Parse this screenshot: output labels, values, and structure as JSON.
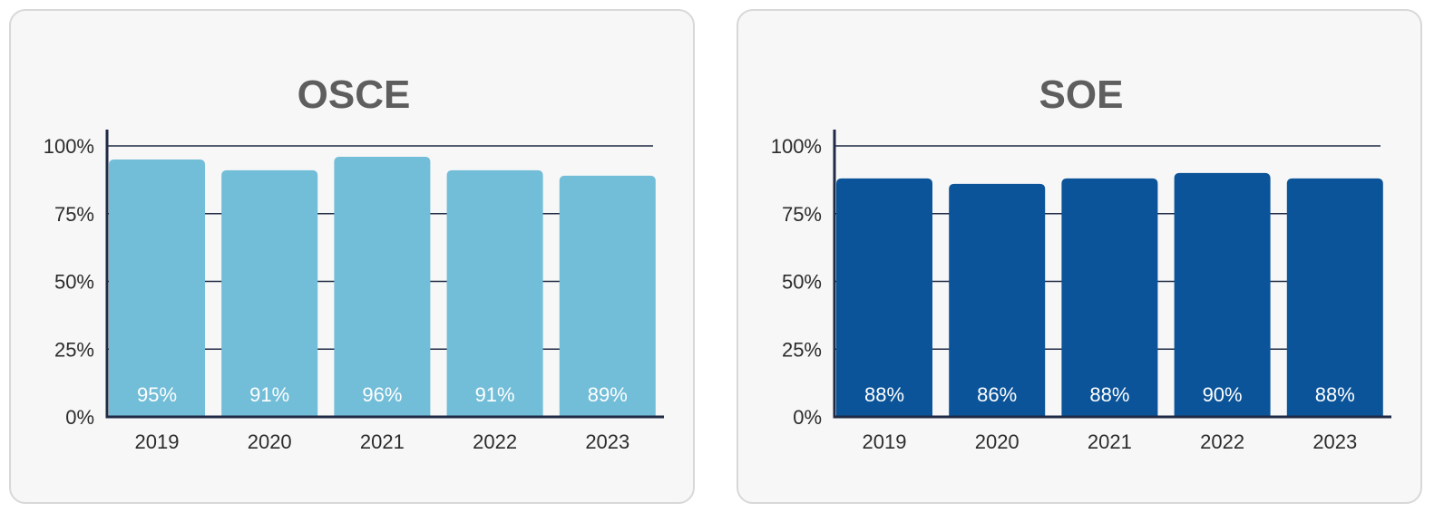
{
  "chart_data": [
    {
      "type": "bar",
      "title": "OSCE",
      "categories": [
        "2019",
        "2020",
        "2021",
        "2022",
        "2023"
      ],
      "values": [
        95,
        91,
        96,
        91,
        89
      ],
      "data_labels": [
        "95%",
        "91%",
        "96%",
        "91%",
        "89%"
      ],
      "y_ticks": [
        "0%",
        "25%",
        "50%",
        "75%",
        "100%"
      ],
      "ylim": [
        0,
        100
      ],
      "xlabel": "",
      "ylabel": "",
      "grid": true,
      "bar_color": "#72bdd8"
    },
    {
      "type": "bar",
      "title": "SOE",
      "categories": [
        "2019",
        "2020",
        "2021",
        "2022",
        "2023"
      ],
      "values": [
        88,
        86,
        88,
        90,
        88
      ],
      "data_labels": [
        "88%",
        "86%",
        "88%",
        "90%",
        "88%"
      ],
      "y_ticks": [
        "0%",
        "25%",
        "50%",
        "75%",
        "100%"
      ],
      "ylim": [
        0,
        100
      ],
      "xlabel": "",
      "ylabel": "",
      "grid": true,
      "bar_color": "#0b5499"
    }
  ]
}
